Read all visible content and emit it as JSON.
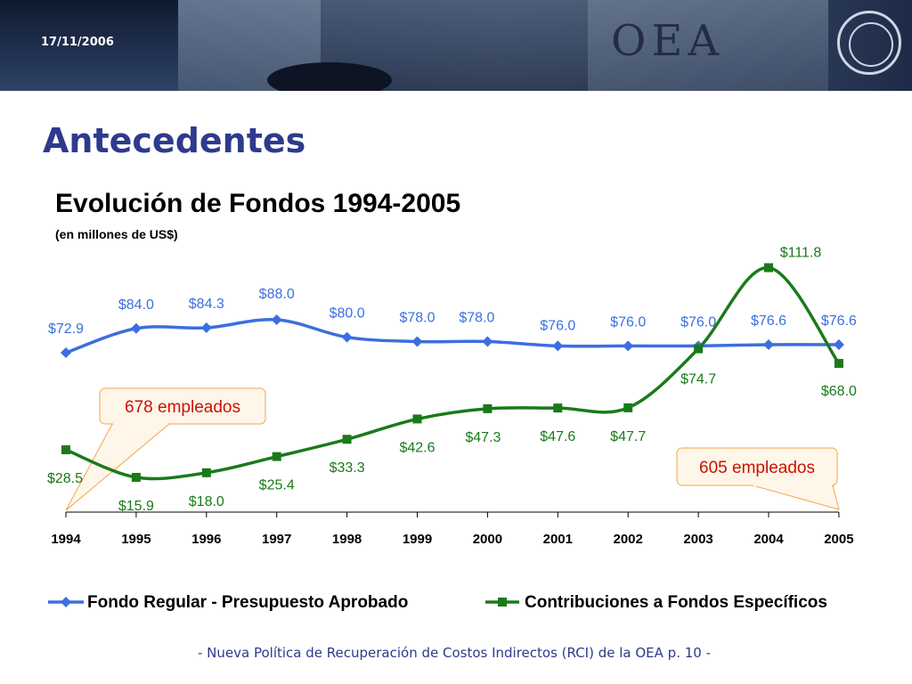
{
  "header": {
    "date": "17/11/2006",
    "brand": "OEA"
  },
  "page": {
    "title": "Antecedentes",
    "chart_title": "Evolución de Fondos 1994-2005",
    "chart_subtitle": "(en millones de US$)"
  },
  "chart_data": {
    "type": "line",
    "title": "Evolución de Fondos 1994-2005",
    "subtitle": "(en millones de US$)",
    "categories": [
      "1994",
      "1995",
      "1996",
      "1997",
      "1998",
      "1999",
      "2000",
      "2001",
      "2002",
      "2003",
      "2004",
      "2005"
    ],
    "ylim": [
      0,
      120
    ],
    "grid": false,
    "legend": "bottom",
    "series": [
      {
        "name": "Fondo Regular - Presupuesto Aprobado",
        "color": "#3b6fe0",
        "marker": "diamond",
        "values": [
          72.9,
          84.0,
          84.3,
          88.0,
          80.0,
          78.0,
          78.0,
          76.0,
          76.0,
          76.0,
          76.6,
          76.6
        ],
        "labels": [
          "$72.9",
          "$84.0",
          "$84.3",
          "$88.0",
          "$80.0",
          "$78.0",
          "$78.0",
          "$76.0",
          "$76.0",
          "$76.0",
          "$76.6",
          "$76.6"
        ]
      },
      {
        "name": "Contribuciones a Fondos Específicos",
        "color": "#1a7a1a",
        "marker": "square",
        "values": [
          28.5,
          15.9,
          18.0,
          25.4,
          33.3,
          42.6,
          47.3,
          47.6,
          47.7,
          74.7,
          111.8,
          68.0
        ],
        "labels": [
          "$28.5",
          "$15.9",
          "$18.0",
          "$25.4",
          "$33.3",
          "$42.6",
          "$47.3",
          "$47.6",
          "$47.7",
          "$74.7",
          "$111.8",
          "$68.0"
        ]
      }
    ],
    "annotations": [
      "678 empleados",
      "605 empleados"
    ]
  },
  "footer": {
    "text": "-  Nueva Política de Recuperación de Costos Indirectos (RCI) de la OEA p. 10 -"
  }
}
